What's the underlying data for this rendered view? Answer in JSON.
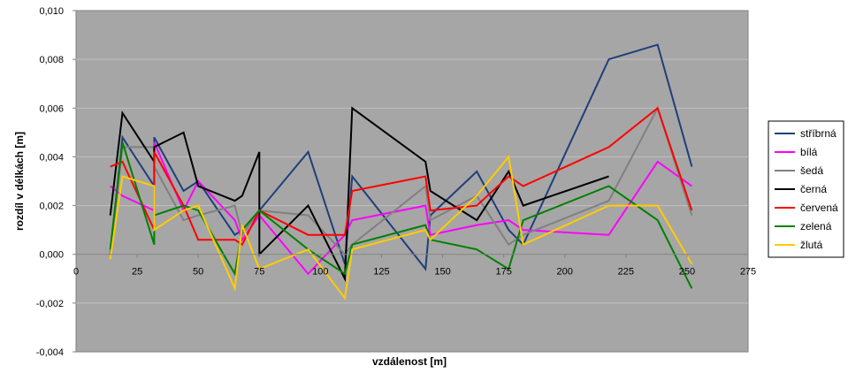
{
  "chart_data": {
    "type": "line",
    "xlabel": "vzdálenost [m]",
    "ylabel": "rozdíl v délkách [m]",
    "xlim": [
      0,
      275
    ],
    "ylim": [
      -0.004,
      0.01
    ],
    "x_ticks": [
      "0",
      "25",
      "50",
      "75",
      "100",
      "125",
      "150",
      "175",
      "200",
      "225",
      "250",
      "275"
    ],
    "y_ticks": [
      "-0,004",
      "-0,002",
      "0,000",
      "0,002",
      "0,004",
      "0,006",
      "0,008",
      "0,010"
    ],
    "grid": "horizontal",
    "background": "#a6a6a6",
    "legend_position": "right",
    "series": [
      {
        "name": "stříbrná",
        "color": "#1f3f7a",
        "points": [
          [
            14,
            0.0
          ],
          [
            19,
            0.0048
          ],
          [
            32,
            0.0028
          ],
          [
            32,
            0.0048
          ],
          [
            44,
            0.0026
          ],
          [
            50,
            0.003
          ],
          [
            65,
            0.0008
          ],
          [
            68,
            0.001
          ],
          [
            75,
            0.0018
          ],
          [
            95,
            0.0042
          ],
          [
            110,
            -0.0004
          ],
          [
            113,
            0.0032
          ],
          [
            143,
            -0.0006
          ],
          [
            145,
            0.0016
          ],
          [
            164,
            0.0034
          ],
          [
            177,
            0.001
          ],
          [
            183,
            0.0004
          ],
          [
            218,
            0.008
          ],
          [
            238,
            0.0086
          ],
          [
            252,
            0.0036
          ]
        ]
      },
      {
        "name": "bílá",
        "color": "#ff00ff",
        "points": [
          [
            14,
            0.0028
          ],
          [
            19,
            0.0024
          ],
          [
            32,
            0.0018
          ],
          [
            32,
            0.0046
          ],
          [
            44,
            0.0018
          ],
          [
            50,
            0.003
          ],
          [
            65,
            0.0014
          ],
          [
            68,
            0.0006
          ],
          [
            75,
            0.0016
          ],
          [
            95,
            -0.0008
          ],
          [
            110,
            0.0008
          ],
          [
            113,
            0.0014
          ],
          [
            143,
            0.002
          ],
          [
            145,
            0.0008
          ],
          [
            164,
            0.0012
          ],
          [
            177,
            0.0014
          ],
          [
            183,
            0.001
          ],
          [
            218,
            0.0008
          ],
          [
            238,
            0.0038
          ],
          [
            252,
            0.0028
          ]
        ]
      },
      {
        "name": "šedá",
        "color": "#808080",
        "points": [
          [
            14,
            0.0
          ],
          [
            19,
            0.0044
          ],
          [
            32,
            0.0044
          ],
          [
            32,
            0.0036
          ],
          [
            44,
            0.0014
          ],
          [
            50,
            0.0016
          ],
          [
            65,
            0.002
          ],
          [
            68,
            0.0008
          ],
          [
            75,
            0.0018
          ],
          [
            95,
            0.0016
          ],
          [
            110,
            0.0
          ],
          [
            113,
            0.0004
          ],
          [
            143,
            0.0028
          ],
          [
            145,
            0.0014
          ],
          [
            164,
            0.0024
          ],
          [
            177,
            0.0004
          ],
          [
            183,
            0.0008
          ],
          [
            218,
            0.0022
          ],
          [
            238,
            0.006
          ],
          [
            252,
            0.0016
          ]
        ]
      },
      {
        "name": "černá",
        "color": "#000000",
        "points": [
          [
            14,
            0.0016
          ],
          [
            19,
            0.0058
          ],
          [
            32,
            0.0038
          ],
          [
            32,
            0.0044
          ],
          [
            44,
            0.005
          ],
          [
            50,
            0.0028
          ],
          [
            65,
            0.0022
          ],
          [
            68,
            0.0024
          ],
          [
            75,
            0.0042
          ],
          [
            75,
            0.0
          ],
          [
            95,
            0.002
          ],
          [
            110,
            -0.001
          ],
          [
            113,
            0.006
          ],
          [
            143,
            0.0038
          ],
          [
            145,
            0.0026
          ],
          [
            164,
            0.0014
          ],
          [
            177,
            0.0034
          ],
          [
            183,
            0.002
          ],
          [
            218,
            0.0032
          ]
        ]
      },
      {
        "name": "červená",
        "color": "#ff0000",
        "points": [
          [
            14,
            0.0036
          ],
          [
            19,
            0.0038
          ],
          [
            32,
            0.001
          ],
          [
            32,
            0.0042
          ],
          [
            44,
            0.002
          ],
          [
            50,
            0.0006
          ],
          [
            65,
            0.0006
          ],
          [
            68,
            0.0004
          ],
          [
            75,
            0.0018
          ],
          [
            95,
            0.0008
          ],
          [
            110,
            0.0008
          ],
          [
            113,
            0.0026
          ],
          [
            143,
            0.0032
          ],
          [
            145,
            0.0018
          ],
          [
            164,
            0.002
          ],
          [
            177,
            0.0032
          ],
          [
            183,
            0.0028
          ],
          [
            218,
            0.0044
          ],
          [
            238,
            0.006
          ],
          [
            252,
            0.0018
          ]
        ]
      },
      {
        "name": "zelená",
        "color": "#008000",
        "points": [
          [
            14,
            0.0002
          ],
          [
            19,
            0.0046
          ],
          [
            32,
            0.0004
          ],
          [
            32,
            0.0016
          ],
          [
            44,
            0.002
          ],
          [
            50,
            0.0018
          ],
          [
            65,
            -0.0008
          ],
          [
            68,
            0.001
          ],
          [
            75,
            0.0018
          ],
          [
            95,
            0.0002
          ],
          [
            110,
            -0.0008
          ],
          [
            113,
            0.0004
          ],
          [
            143,
            0.0012
          ],
          [
            145,
            0.0006
          ],
          [
            164,
            0.0002
          ],
          [
            177,
            -0.0006
          ],
          [
            183,
            0.0014
          ],
          [
            218,
            0.0028
          ],
          [
            238,
            0.0014
          ],
          [
            252,
            -0.0014
          ]
        ]
      },
      {
        "name": "žlutá",
        "color": "#ffcc00",
        "points": [
          [
            14,
            -0.0002
          ],
          [
            19,
            0.0032
          ],
          [
            32,
            0.0028
          ],
          [
            32,
            0.001
          ],
          [
            44,
            0.0018
          ],
          [
            50,
            0.002
          ],
          [
            65,
            -0.0014
          ],
          [
            68,
            0.0012
          ],
          [
            75,
            -0.0006
          ],
          [
            95,
            0.0002
          ],
          [
            110,
            -0.0018
          ],
          [
            113,
            0.0002
          ],
          [
            143,
            0.001
          ],
          [
            145,
            0.0006
          ],
          [
            164,
            0.0024
          ],
          [
            177,
            0.004
          ],
          [
            183,
            0.0004
          ],
          [
            218,
            0.002
          ],
          [
            238,
            0.002
          ],
          [
            252,
            -0.0004
          ]
        ]
      }
    ]
  }
}
